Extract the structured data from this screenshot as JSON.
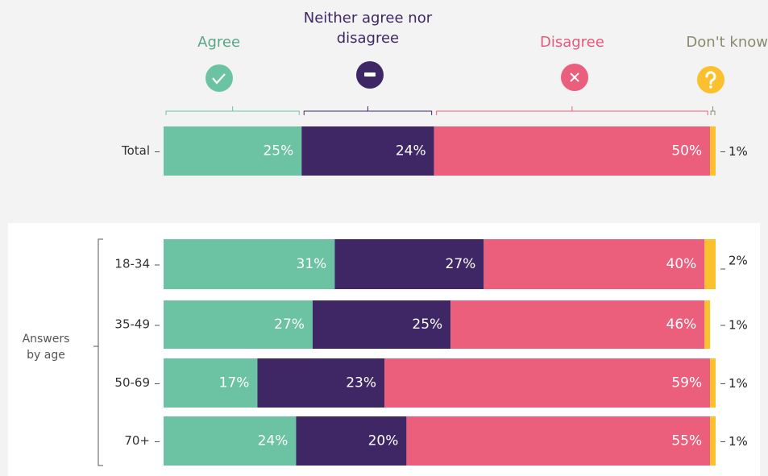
{
  "chart_data": {
    "type": "bar",
    "orientation": "horizontal",
    "stacked": true,
    "categories": [
      "Total",
      "18-34",
      "35-49",
      "50-69",
      "70+"
    ],
    "group_label": "Answers by age",
    "xlim": [
      0,
      100
    ],
    "series": [
      {
        "name": "Agree",
        "color": "#6cc3a4",
        "header_color": "#5aa587",
        "values": [
          25,
          31,
          27,
          17,
          24
        ],
        "value_labels": [
          "25%",
          "31%",
          "27%",
          "17%",
          "24%"
        ]
      },
      {
        "name": "Neither agree nor disagree",
        "color": "#3f2766",
        "header_color": "#3f2766",
        "values": [
          24,
          27,
          25,
          23,
          20
        ],
        "value_labels": [
          "24%",
          "27%",
          "25%",
          "23%",
          "20%"
        ]
      },
      {
        "name": "Disagree",
        "color": "#eb5f7c",
        "header_color": "#e8577a",
        "values": [
          50,
          40,
          46,
          59,
          55
        ],
        "value_labels": [
          "50%",
          "40%",
          "46%",
          "59%",
          "55%"
        ]
      },
      {
        "name": "Don't know",
        "color": "#fbc02d",
        "header_color": "#8c8a6e",
        "values": [
          1,
          2,
          1,
          1,
          1
        ],
        "value_labels": [
          "1%",
          "2%",
          "1%",
          "1%",
          "1%"
        ]
      }
    ]
  }
}
